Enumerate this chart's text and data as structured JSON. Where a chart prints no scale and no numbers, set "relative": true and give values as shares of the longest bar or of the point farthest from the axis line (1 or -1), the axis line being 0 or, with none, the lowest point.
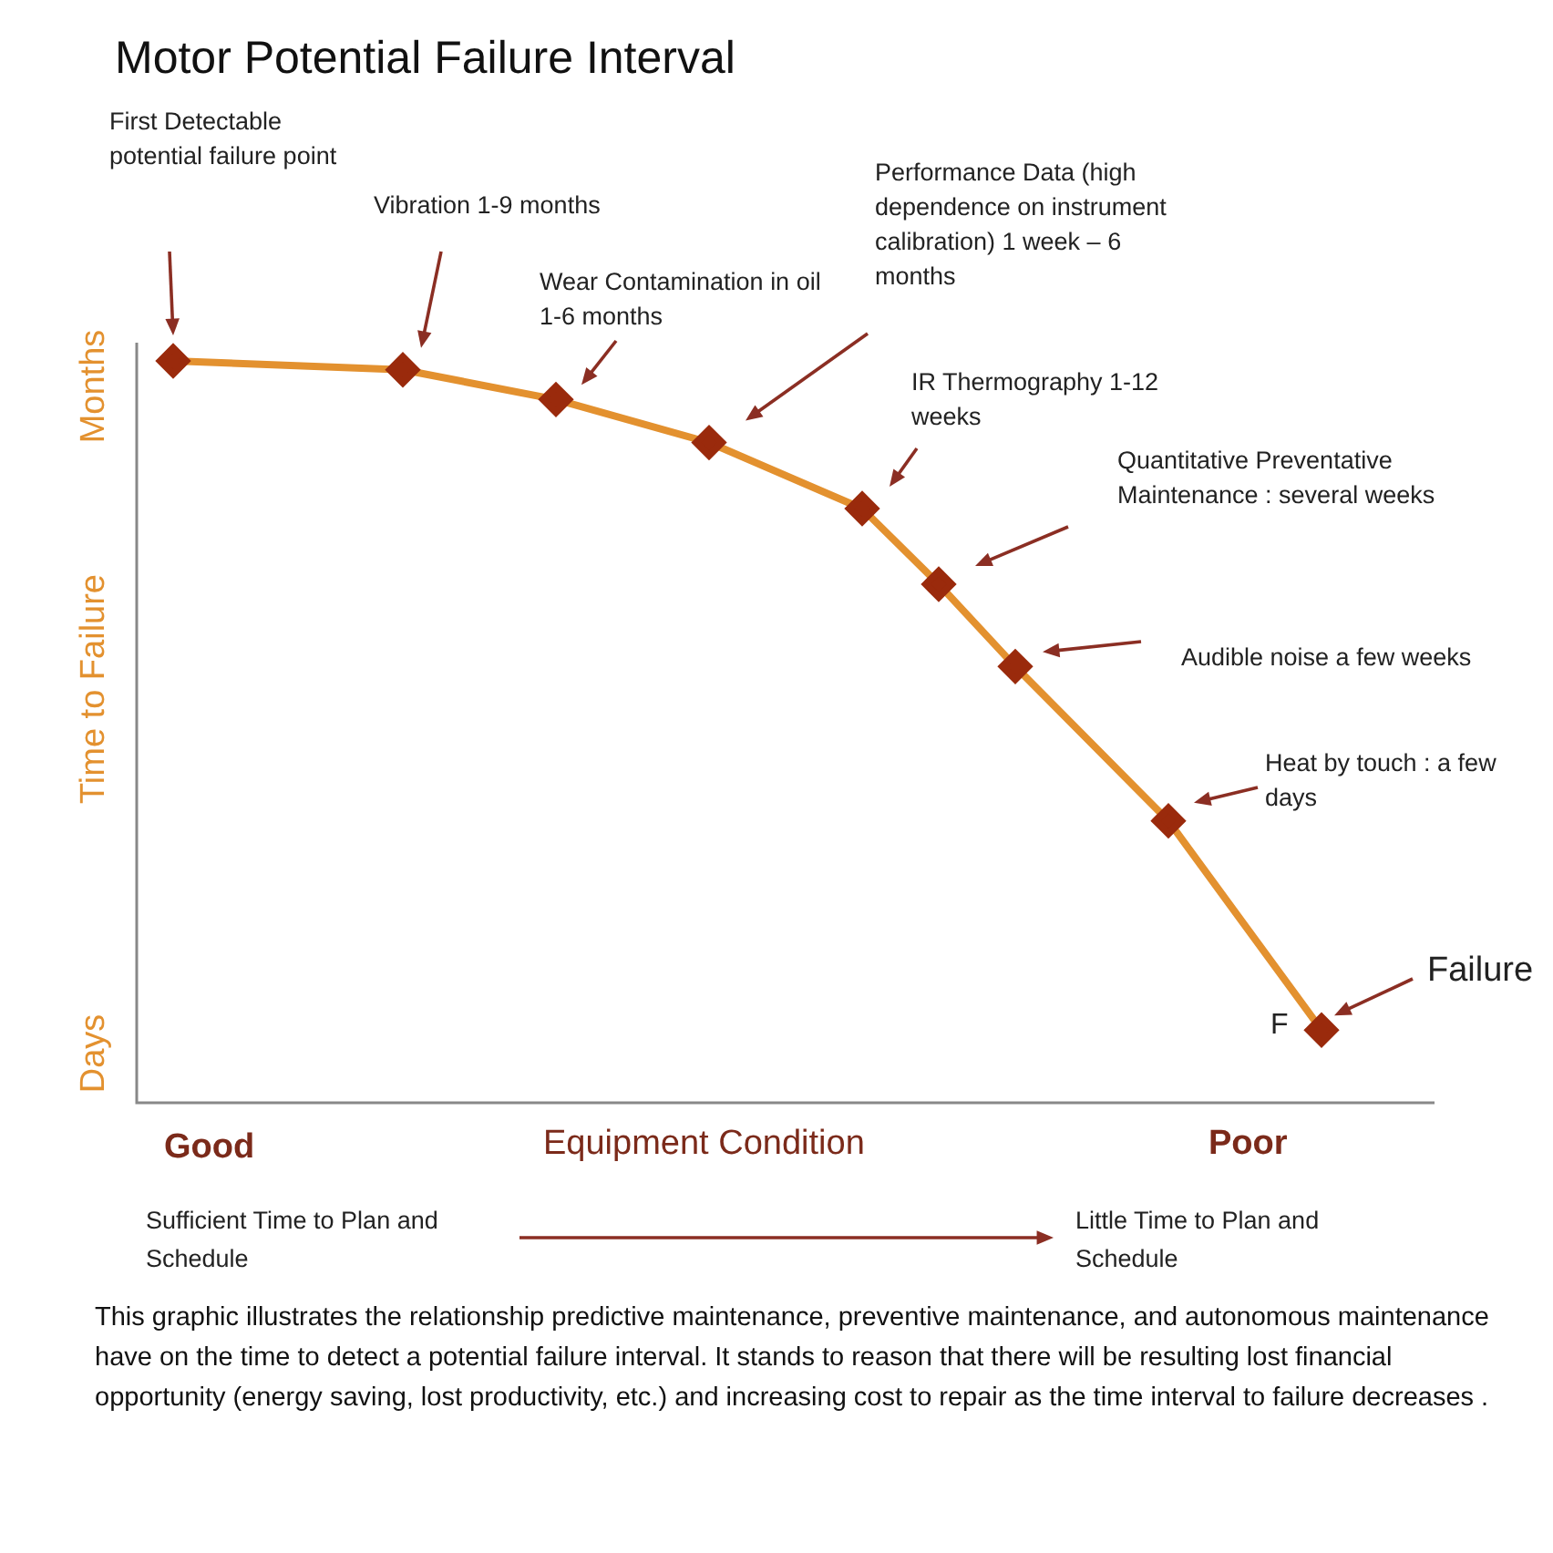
{
  "chart_data": {
    "type": "line",
    "title": "Motor Potential Failure Interval",
    "xlabel": "Equipment Condition",
    "ylabel": "Time to Failure",
    "relative": true,
    "categories": [
      null,
      null,
      null,
      null,
      null,
      null,
      null,
      null,
      null,
      null,
      null,
      null,
      null,
      null,
      null,
      null
    ],
    "series": [
      {
        "color": "#e3912f",
        "marker": "diamond",
        "values": [
          1.0,
          null,
          null,
          0.988,
          null,
          0.948,
          null,
          0.89,
          null,
          0.801,
          0.699,
          0.588,
          null,
          0.38,
          null,
          0.098
        ]
      }
    ],
    "annotations": [
      "First Detectable potential failure point",
      "Vibration 1-9 months",
      "Wear Contamination in oil  1-6 months",
      "Performance Data (high dependence on instrument calibration) 1 week – 6 months",
      "IR Thermography 1-12 weeks",
      "Quantitative Preventative Maintenance : several weeks",
      "Audible noise a few weeks",
      "Heat by touch : a few days",
      "Failure",
      "F",
      "Months",
      "Days",
      "Good",
      "Poor",
      "Sufficient Time to Plan and Schedule",
      "Little Time to Plan and Schedule",
      "This graphic illustrates the relationship predictive maintenance, preventive maintenance, and autonomous maintenance have on the  time to detect a potential failure interval. It stands to reason that there will be resulting lost financial opportunity (energy saving, lost productivity, etc.) and increasing cost to repair as the time interval to failure  decreases ."
    ]
  }
}
